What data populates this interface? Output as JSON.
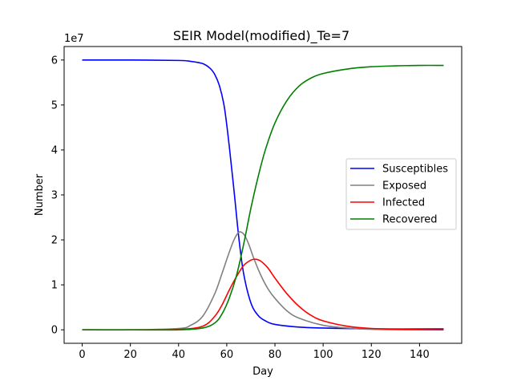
{
  "chart_data": {
    "type": "line",
    "title": "SEIR Model(modified)_Te=7",
    "xlabel": "Day",
    "ylabel": "Number",
    "y_offset_label": "1e7",
    "xlim": [
      -7.5,
      157.5
    ],
    "ylim": [
      -0.3,
      6.3
    ],
    "x_ticks": [
      0,
      20,
      40,
      60,
      80,
      100,
      120,
      140
    ],
    "y_ticks": [
      0,
      1,
      2,
      3,
      4,
      5,
      6
    ],
    "grid": false,
    "legend_position": "center-right",
    "series": [
      {
        "name": "Susceptibles",
        "color": "#0000ff",
        "x": [
          0,
          20,
          40,
          45,
          50,
          53,
          55,
          57,
          59,
          61,
          63,
          65,
          67,
          70,
          73,
          76,
          80,
          90,
          100,
          120,
          150
        ],
        "y": [
          6.0,
          6.0,
          5.99,
          5.97,
          5.92,
          5.82,
          5.68,
          5.42,
          4.95,
          4.1,
          3.1,
          2.05,
          1.25,
          0.6,
          0.32,
          0.2,
          0.12,
          0.06,
          0.04,
          0.02,
          0.02
        ]
      },
      {
        "name": "Exposed",
        "color": "#808080",
        "x": [
          0,
          20,
          40,
          45,
          50,
          55,
          58,
          61,
          63,
          65,
          67,
          69,
          71,
          74,
          77,
          80,
          85,
          90,
          100,
          110,
          120,
          135,
          150
        ],
        "y": [
          0,
          0,
          0.03,
          0.1,
          0.3,
          0.8,
          1.25,
          1.72,
          2.0,
          2.17,
          2.13,
          1.92,
          1.62,
          1.23,
          0.92,
          0.7,
          0.42,
          0.26,
          0.1,
          0.04,
          0.01,
          0.0,
          0.0
        ]
      },
      {
        "name": "Infected",
        "color": "#ff0000",
        "x": [
          0,
          20,
          40,
          50,
          55,
          58,
          61,
          64,
          67,
          70,
          72,
          74,
          77,
          80,
          85,
          90,
          95,
          100,
          110,
          120,
          135,
          150
        ],
        "y": [
          0,
          0,
          0.01,
          0.08,
          0.3,
          0.55,
          0.88,
          1.18,
          1.43,
          1.55,
          1.57,
          1.53,
          1.38,
          1.15,
          0.8,
          0.52,
          0.32,
          0.2,
          0.08,
          0.03,
          0.01,
          0.0
        ]
      },
      {
        "name": "Recovered",
        "color": "#008000",
        "x": [
          0,
          20,
          40,
          50,
          55,
          58,
          61,
          64,
          67,
          70,
          73,
          76,
          80,
          85,
          90,
          95,
          100,
          110,
          120,
          130,
          140,
          150
        ],
        "y": [
          0,
          0,
          0.0,
          0.04,
          0.15,
          0.35,
          0.7,
          1.2,
          1.9,
          2.7,
          3.4,
          4.0,
          4.6,
          5.1,
          5.42,
          5.6,
          5.7,
          5.8,
          5.85,
          5.87,
          5.88,
          5.88
        ]
      }
    ]
  }
}
